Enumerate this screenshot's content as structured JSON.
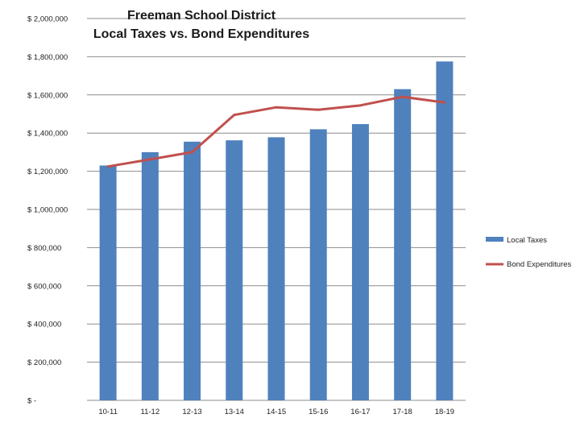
{
  "chart_data": {
    "type": "bar",
    "title_lines": [
      "Freeman School District",
      "Local Taxes vs. Bond Expenditures"
    ],
    "categories": [
      "10-11",
      "11-12",
      "12-13",
      "13-14",
      "14-15",
      "15-16",
      "16-17",
      "17-18",
      "18-19"
    ],
    "series": [
      {
        "name": "Local Taxes",
        "kind": "bar",
        "color": "#4f81bd",
        "values": [
          1230000,
          1300000,
          1355000,
          1362000,
          1378000,
          1420000,
          1447000,
          1630000,
          1775000
        ]
      },
      {
        "name": "Bond Expenditures",
        "kind": "line",
        "color": "#c0504d",
        "values": [
          1225000,
          1262000,
          1300000,
          1495000,
          1535000,
          1522000,
          1545000,
          1590000,
          1560000
        ]
      }
    ],
    "y_ticks": [
      0,
      200000,
      400000,
      600000,
      800000,
      1000000,
      1200000,
      1400000,
      1600000,
      1800000,
      2000000
    ],
    "y_tick_labels": [
      "$ -",
      "$ 200,000",
      "$ 400,000",
      "$ 600,000",
      "$ 800,000",
      "$ 1,000,000",
      "$ 1,200,000",
      "$ 1,400,000",
      "$ 1,600,000",
      "$ 1,800,000",
      "$ 2,000,000"
    ],
    "ylim": [
      0,
      2000000
    ],
    "grid": true,
    "legend_position": "right"
  }
}
